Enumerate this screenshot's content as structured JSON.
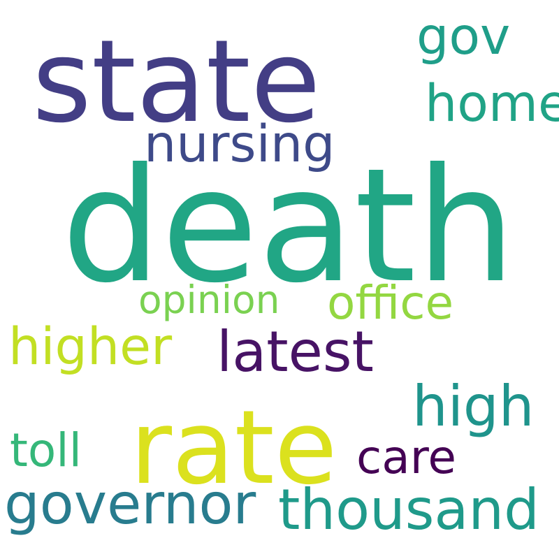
{
  "words": [
    {
      "text": "death",
      "color": "#21a685"
    },
    {
      "text": "state",
      "color": "#433e85"
    },
    {
      "text": "rate",
      "color": "#dbe11e"
    },
    {
      "text": "nursing",
      "color": "#3e4a89"
    },
    {
      "text": "gov",
      "color": "#1f9e89"
    },
    {
      "text": "home",
      "color": "#20a386"
    },
    {
      "text": "office",
      "color": "#93d741"
    },
    {
      "text": "opinion",
      "color": "#7ad151"
    },
    {
      "text": "higher",
      "color": "#c2df23"
    },
    {
      "text": "latest",
      "color": "#471365"
    },
    {
      "text": "high",
      "color": "#1f948c"
    },
    {
      "text": "toll",
      "color": "#35b779"
    },
    {
      "text": "care",
      "color": "#440154"
    },
    {
      "text": "governor",
      "color": "#287c8e"
    },
    {
      "text": "thousand",
      "color": "#1f9a8a"
    }
  ]
}
